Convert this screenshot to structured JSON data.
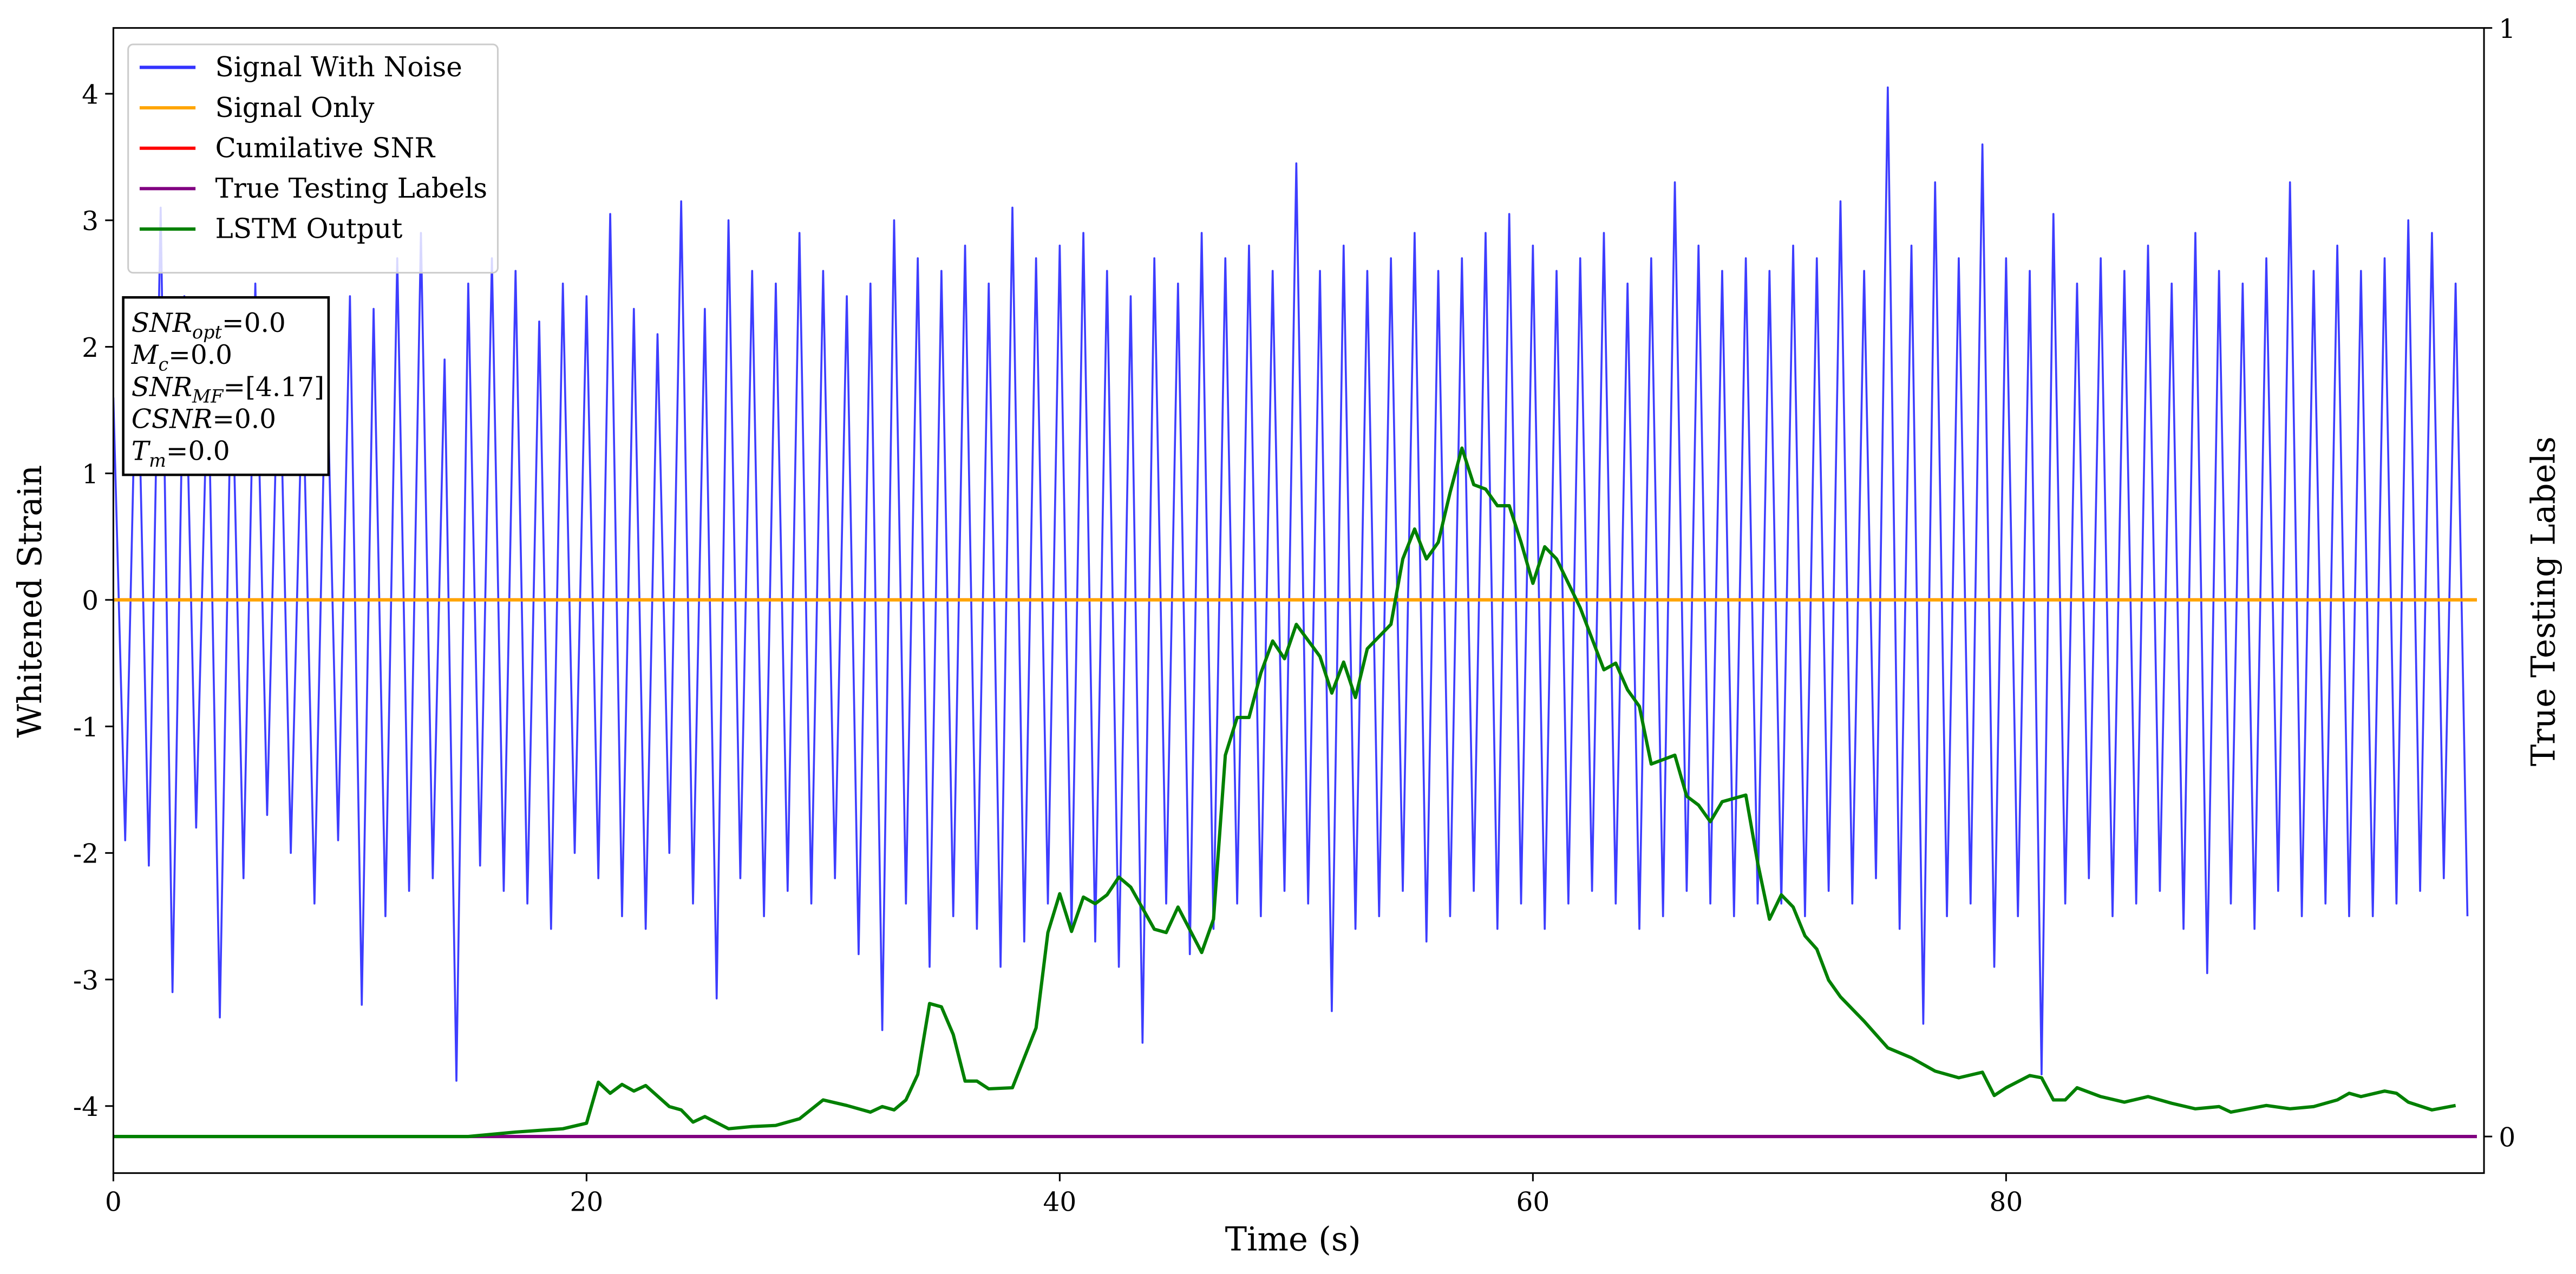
{
  "chart_data": {
    "type": "line",
    "xlabel": "Time (s)",
    "ylabel": "Whitened Strain",
    "y2label": "True Testing Labels",
    "xlim": [
      0,
      100.2
    ],
    "ylim": [
      -4.53,
      4.52
    ],
    "y2lim": [
      -0.033,
      1
    ],
    "xticks": [
      0,
      20,
      40,
      60,
      80
    ],
    "yticks": [
      -4,
      -3,
      -2,
      -1,
      0,
      1,
      2,
      3,
      4
    ],
    "y2ticks": [
      0,
      1
    ],
    "legend": "upper left",
    "annotations": [
      {
        "text": "SNR",
        "sub": "opt",
        "value": "=0.0"
      },
      {
        "text": "M",
        "sub": "c",
        "value": "=0.0"
      },
      {
        "text": "SNR",
        "sub": "MF",
        "value": "=[4.17]"
      },
      {
        "text": "CSNR",
        "value": "=0.0"
      },
      {
        "text": "T",
        "sub": "m",
        "value": "=0.0"
      }
    ],
    "series": [
      {
        "name": "Signal With Noise",
        "color": "#3333ff",
        "x": [
          0,
          0.5,
          1,
          1.5,
          2,
          2.5,
          3,
          3.5,
          4,
          4.5,
          5,
          5.5,
          6,
          6.5,
          7,
          7.5,
          8,
          8.5,
          9,
          9.5,
          10,
          10.5,
          11,
          11.5,
          12,
          12.5,
          13,
          13.5,
          14,
          14.5,
          15,
          15.5,
          16,
          16.5,
          17,
          17.5,
          18,
          18.5,
          19,
          19.5,
          20,
          20.5,
          21,
          21.5,
          22,
          22.5,
          23,
          23.5,
          24,
          24.5,
          25,
          25.5,
          26,
          26.5,
          27,
          27.5,
          28,
          28.5,
          29,
          29.5,
          30,
          30.5,
          31,
          31.5,
          32,
          32.5,
          33,
          33.5,
          34,
          34.5,
          35,
          35.5,
          36,
          36.5,
          37,
          37.5,
          38,
          38.5,
          39,
          39.5,
          40,
          40.5,
          41,
          41.5,
          42,
          42.5,
          43,
          43.5,
          44,
          44.5,
          45,
          45.5,
          46,
          46.5,
          47,
          47.5,
          48,
          48.5,
          49,
          49.5,
          50,
          50.5,
          51,
          51.5,
          52,
          52.5,
          53,
          53.5,
          54,
          54.5,
          55,
          55.5,
          56,
          56.5,
          57,
          57.5,
          58,
          58.5,
          59,
          59.5,
          60,
          60.5,
          61,
          61.5,
          62,
          62.5,
          63,
          63.5,
          64,
          64.5,
          65,
          65.5,
          66,
          66.5,
          67,
          67.5,
          68,
          68.5,
          69,
          69.5,
          70,
          70.5,
          71,
          71.5,
          72,
          72.5,
          73,
          73.5,
          74,
          74.5,
          75,
          75.5,
          76,
          76.5,
          77,
          77.5,
          78,
          78.5,
          79,
          79.5,
          80,
          80.5,
          81,
          81.5,
          82,
          82.5,
          83,
          83.5,
          84,
          84.5,
          85,
          85.5,
          86,
          86.5,
          87,
          87.5,
          88,
          88.5,
          89,
          89.5,
          90,
          90.5,
          91,
          91.5,
          92,
          92.5,
          93,
          93.5,
          94,
          94.5,
          95,
          95.5,
          96,
          96.5,
          97,
          97.5,
          98,
          98.5,
          99,
          99.5
        ],
        "values": [
          1.6,
          -1.9,
          2.3,
          -2.1,
          3.1,
          -3.1,
          2.4,
          -1.8,
          1.9,
          -3.3,
          2.0,
          -2.2,
          2.5,
          -1.7,
          2.2,
          -2.0,
          1.8,
          -2.4,
          2.1,
          -1.9,
          2.4,
          -3.2,
          2.3,
          -2.5,
          2.7,
          -2.3,
          2.9,
          -2.2,
          1.9,
          -3.8,
          2.5,
          -2.1,
          2.7,
          -2.3,
          2.6,
          -2.4,
          2.2,
          -2.6,
          2.5,
          -2.0,
          2.4,
          -2.2,
          3.05,
          -2.5,
          2.3,
          -2.6,
          2.1,
          -2.0,
          3.15,
          -2.4,
          2.3,
          -3.15,
          3.0,
          -2.2,
          2.6,
          -2.5,
          2.5,
          -2.3,
          2.9,
          -2.4,
          2.6,
          -2.2,
          2.4,
          -2.8,
          2.5,
          -3.4,
          3.0,
          -2.4,
          2.7,
          -2.9,
          2.6,
          -2.5,
          2.8,
          -2.6,
          2.5,
          -2.9,
          3.1,
          -2.7,
          2.7,
          -2.4,
          2.8,
          -2.6,
          2.9,
          -2.7,
          2.6,
          -2.9,
          2.4,
          -3.5,
          2.7,
          -2.4,
          2.5,
          -2.8,
          2.9,
          -2.6,
          2.7,
          -2.4,
          2.8,
          -2.5,
          2.6,
          -2.3,
          3.45,
          -2.4,
          2.6,
          -3.25,
          2.8,
          -2.6,
          2.6,
          -2.5,
          2.7,
          -2.3,
          2.9,
          -2.7,
          2.6,
          -2.5,
          2.7,
          -2.3,
          2.9,
          -2.6,
          3.05,
          -2.4,
          2.8,
          -2.6,
          2.6,
          -2.4,
          2.7,
          -2.3,
          2.9,
          -2.4,
          2.5,
          -2.6,
          2.7,
          -2.5,
          3.3,
          -2.3,
          2.8,
          -2.4,
          2.6,
          -2.5,
          2.7,
          -2.4,
          2.6,
          -2.4,
          2.8,
          -2.5,
          2.7,
          -2.3,
          3.15,
          -2.4,
          2.6,
          -2.2,
          4.05,
          -2.6,
          2.8,
          -3.35,
          3.3,
          -2.5,
          2.7,
          -2.4,
          3.6,
          -2.9,
          2.7,
          -2.5,
          2.6,
          -3.75,
          3.05,
          -2.4,
          2.5,
          -2.2,
          2.7,
          -2.5,
          2.6,
          -2.4,
          2.8,
          -2.3,
          2.5,
          -2.6,
          2.9,
          -2.95,
          2.6,
          -2.4,
          2.5,
          -2.6,
          2.7,
          -2.3,
          3.3,
          -2.5,
          2.6,
          -2.4,
          2.8,
          -2.5,
          2.6,
          -2.5,
          2.7,
          -2.4,
          3.0,
          -2.3,
          2.9,
          -2.2,
          2.5,
          -2.5
        ]
      },
      {
        "name": "Signal Only",
        "color": "#ffa500",
        "x": [
          0,
          99.9
        ],
        "values": [
          0,
          0
        ]
      },
      {
        "name": "Cumilative SNR",
        "color": "#ff0000",
        "x": [
          0,
          99.9
        ],
        "values": [
          0,
          0
        ]
      },
      {
        "name": "True Testing Labels",
        "color": "#800080",
        "axis": "y2",
        "x": [
          0,
          99.9
        ],
        "values": [
          0,
          0
        ]
      },
      {
        "name": "LSTM Output",
        "color": "#008000",
        "axis": "y2",
        "x": [
          0,
          15,
          17,
          19,
          20,
          20.5,
          21,
          21.5,
          22,
          22.5,
          23.5,
          24,
          24.5,
          25,
          26,
          27,
          28,
          29,
          30,
          31,
          32,
          32.5,
          33,
          33.5,
          34,
          34.5,
          35,
          35.5,
          36,
          36.5,
          37,
          38,
          39,
          39.5,
          40,
          40.5,
          41,
          41.5,
          42,
          42.5,
          43,
          44,
          44.5,
          45,
          46,
          46.5,
          47,
          47.5,
          48,
          48.5,
          49,
          49.5,
          50,
          51,
          51.5,
          52,
          52.5,
          53,
          54,
          54.5,
          55,
          55.5,
          56,
          56.5,
          57,
          57.5,
          58,
          58.5,
          59,
          59.5,
          60,
          60.5,
          61,
          62,
          63,
          63.5,
          64,
          64.5,
          65,
          66,
          66.5,
          67,
          67.5,
          68,
          69,
          69.5,
          70,
          70.5,
          71,
          71.5,
          72,
          72.5,
          73,
          74,
          75,
          76,
          77,
          78,
          79,
          79.5,
          80,
          81,
          81.5,
          82,
          82.5,
          83,
          84,
          85,
          86,
          87,
          88,
          89,
          89.5,
          90,
          91,
          92,
          93,
          94,
          94.5,
          95,
          96,
          96.5,
          97,
          98,
          99
        ],
        "values": [
          0,
          0,
          0.004,
          0.007,
          0.012,
          0.049,
          0.039,
          0.047,
          0.041,
          0.046,
          0.027,
          0.024,
          0.013,
          0.018,
          0.007,
          0.009,
          0.01,
          0.016,
          0.033,
          0.028,
          0.022,
          0.027,
          0.024,
          0.033,
          0.056,
          0.12,
          0.117,
          0.092,
          0.05,
          0.05,
          0.043,
          0.044,
          0.098,
          0.184,
          0.219,
          0.185,
          0.216,
          0.21,
          0.218,
          0.234,
          0.225,
          0.187,
          0.184,
          0.207,
          0.166,
          0.196,
          0.344,
          0.378,
          0.378,
          0.418,
          0.447,
          0.431,
          0.462,
          0.433,
          0.4,
          0.428,
          0.396,
          0.44,
          0.462,
          0.521,
          0.548,
          0.521,
          0.536,
          0.581,
          0.621,
          0.588,
          0.584,
          0.569,
          0.569,
          0.536,
          0.499,
          0.532,
          0.521,
          0.477,
          0.421,
          0.427,
          0.403,
          0.388,
          0.336,
          0.344,
          0.307,
          0.299,
          0.284,
          0.302,
          0.308,
          0.247,
          0.196,
          0.218,
          0.207,
          0.181,
          0.169,
          0.141,
          0.126,
          0.104,
          0.08,
          0.071,
          0.059,
          0.053,
          0.058,
          0.037,
          0.044,
          0.055,
          0.053,
          0.033,
          0.033,
          0.044,
          0.036,
          0.031,
          0.036,
          0.03,
          0.025,
          0.027,
          0.022,
          0.024,
          0.028,
          0.025,
          0.027,
          0.033,
          0.039,
          0.036,
          0.041,
          0.039,
          0.031,
          0.024,
          0.028
        ]
      }
    ]
  }
}
